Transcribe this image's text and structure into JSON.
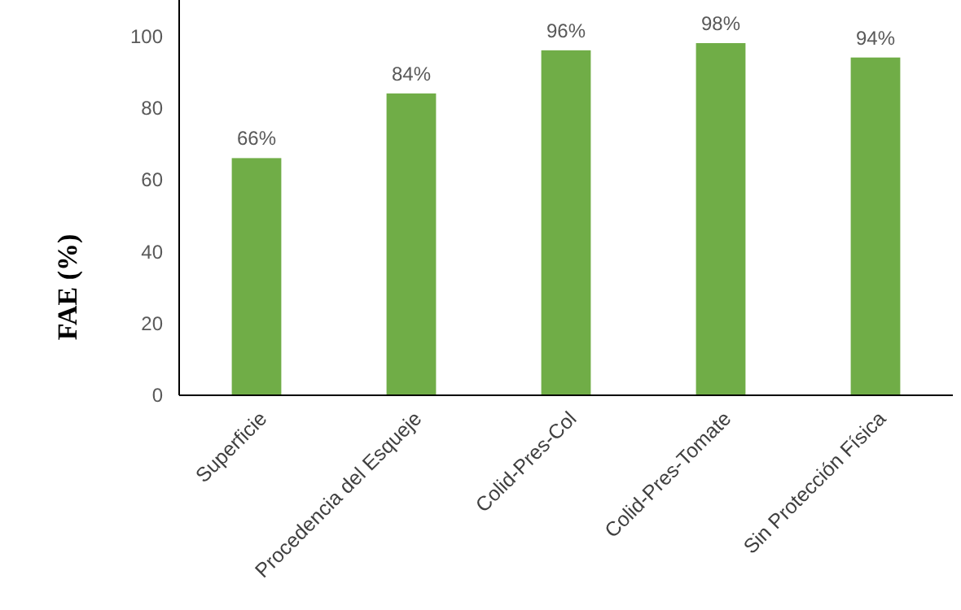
{
  "chart_data": {
    "type": "bar",
    "ylabel": "FAE (%)",
    "categories": [
      "Superficie",
      "Procedencia del Esqueje",
      "Colid-Pres-Col",
      "Colid-Pres-Tomate",
      "Sin Protección Física"
    ],
    "values": [
      66,
      84,
      96,
      98,
      94
    ],
    "value_labels": [
      "66%",
      "84%",
      "96%",
      "98%",
      "94%"
    ],
    "color": "#70ad47",
    "ylim": [
      0,
      110
    ],
    "yticks": [
      0,
      20,
      40,
      60,
      80,
      100
    ],
    "grid": false
  }
}
